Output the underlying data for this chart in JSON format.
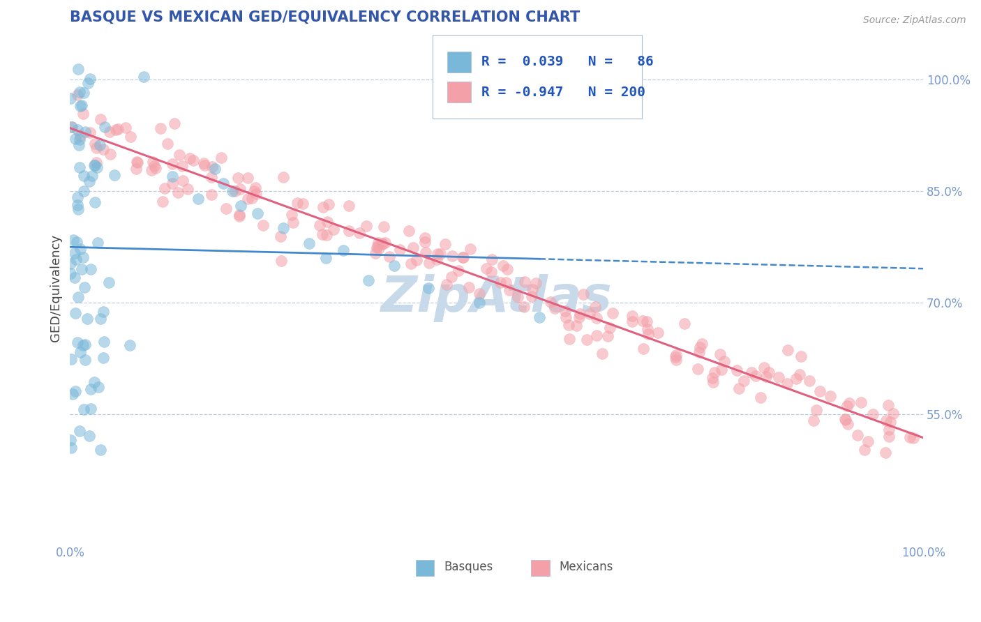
{
  "title": "BASQUE VS MEXICAN GED/EQUIVALENCY CORRELATION CHART",
  "source": "Source: ZipAtlas.com",
  "ylabel": "GED/Equivalency",
  "xlim": [
    0.0,
    1.0
  ],
  "ylim": [
    0.38,
    1.06
  ],
  "yticks": [
    0.55,
    0.7,
    0.85,
    1.0
  ],
  "ytick_labels": [
    "55.0%",
    "70.0%",
    "85.0%",
    "100.0%"
  ],
  "xticks": [
    0.0,
    1.0
  ],
  "xtick_labels": [
    "0.0%",
    "100.0%"
  ],
  "basque_R": 0.039,
  "basque_N": 86,
  "mexican_R": -0.947,
  "mexican_N": 200,
  "blue_dot_color": "#7ab8d9",
  "pink_dot_color": "#f4a0a8",
  "blue_line_color": "#4488cc",
  "pink_line_color": "#e06080",
  "title_color": "#3355aa",
  "ylabel_color": "#444444",
  "tick_color": "#7799cc",
  "legend_R_color": "#2255bb",
  "legend_N_color": "#2255bb",
  "grid_color": "#bbccdd",
  "background_color": "#ffffff",
  "watermark_color": "#c8daea",
  "legend_box_color": "#ddeeff",
  "bottom_legend_text_color": "#555555"
}
